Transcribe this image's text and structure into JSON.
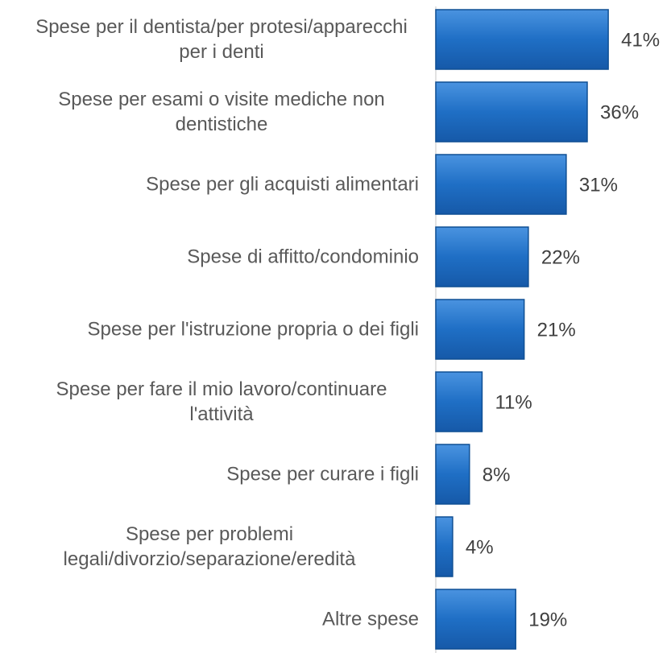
{
  "chart_data": {
    "type": "bar",
    "orientation": "horizontal",
    "categories": [
      "Spese per il dentista/per protesi/apparecchi per i denti",
      "Spese per esami o visite mediche non dentistiche",
      "Spese per gli acquisti alimentari",
      "Spese di affitto/condominio",
      "Spese per l'istruzione propria o dei figli",
      "Spese per fare il mio lavoro/continuare l'attività",
      "Spese per curare i figli",
      "Spese per problemi legali/divorzio/separazione/eredità",
      "Altre spese"
    ],
    "values": [
      41,
      36,
      31,
      22,
      21,
      11,
      8,
      4,
      19
    ],
    "value_labels": [
      "41%",
      "36%",
      "31%",
      "22%",
      "21%",
      "11%",
      "8%",
      "4%",
      "19%"
    ],
    "color": "#1f6fc5",
    "xlim": [
      0,
      45
    ]
  }
}
